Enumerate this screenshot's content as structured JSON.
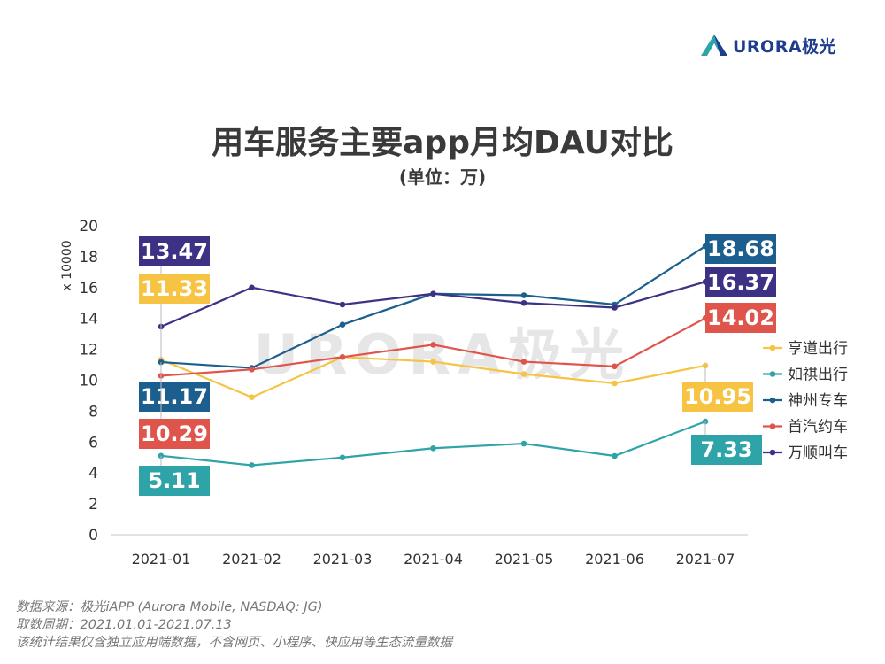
{
  "logo": {
    "text": "URORA极光"
  },
  "watermark": {
    "text": "URORA极光"
  },
  "footer": {
    "line1": "数据来源：极光iAPP (Aurora Mobile, NASDAQ: JG)",
    "line2": "取数周期：2021.01.01-2021.07.13",
    "line3": "该统计结果仅含独立应用端数据，不含网页、小程序、快应用等生态流量数据"
  },
  "chart_data": {
    "type": "line",
    "title": "用车服务主要app月均DAU对比",
    "subtitle": "(单位：万)",
    "ylabel": "x 10000",
    "xlabel": "",
    "categories": [
      "2021-01",
      "2021-02",
      "2021-03",
      "2021-04",
      "2021-05",
      "2021-06",
      "2021-07"
    ],
    "ylim": [
      0,
      20
    ],
    "yticks": [
      0,
      2,
      4,
      6,
      8,
      10,
      12,
      14,
      16,
      18,
      20
    ],
    "grid": false,
    "legend_position": "right",
    "series": [
      {
        "name": "享道出行",
        "color": "#f6c342",
        "values": [
          11.33,
          8.9,
          11.5,
          11.2,
          10.4,
          9.8,
          10.95
        ]
      },
      {
        "name": "如祺出行",
        "color": "#2ea3a8",
        "values": [
          5.11,
          4.5,
          5.0,
          5.6,
          5.9,
          5.1,
          7.33
        ]
      },
      {
        "name": "神州专车",
        "color": "#1c5f8f",
        "values": [
          11.17,
          10.8,
          13.6,
          15.6,
          15.5,
          14.9,
          18.68
        ]
      },
      {
        "name": "首汽约车",
        "color": "#e0554b",
        "values": [
          10.29,
          10.7,
          11.5,
          12.3,
          11.2,
          10.9,
          14.02
        ]
      },
      {
        "name": "万顺叫车",
        "color": "#3d3185",
        "values": [
          13.47,
          16.0,
          14.9,
          15.6,
          15.0,
          14.7,
          16.37
        ]
      }
    ],
    "annotations": [
      {
        "series": 4,
        "index": 0,
        "text": "13.47"
      },
      {
        "series": 0,
        "index": 0,
        "text": "11.33"
      },
      {
        "series": 2,
        "index": 0,
        "text": "11.17"
      },
      {
        "series": 3,
        "index": 0,
        "text": "10.29"
      },
      {
        "series": 1,
        "index": 0,
        "text": "5.11"
      },
      {
        "series": 2,
        "index": 6,
        "text": "18.68"
      },
      {
        "series": 4,
        "index": 6,
        "text": "16.37"
      },
      {
        "series": 3,
        "index": 6,
        "text": "14.02"
      },
      {
        "series": 0,
        "index": 6,
        "text": "10.95"
      },
      {
        "series": 1,
        "index": 6,
        "text": "7.33"
      }
    ]
  }
}
